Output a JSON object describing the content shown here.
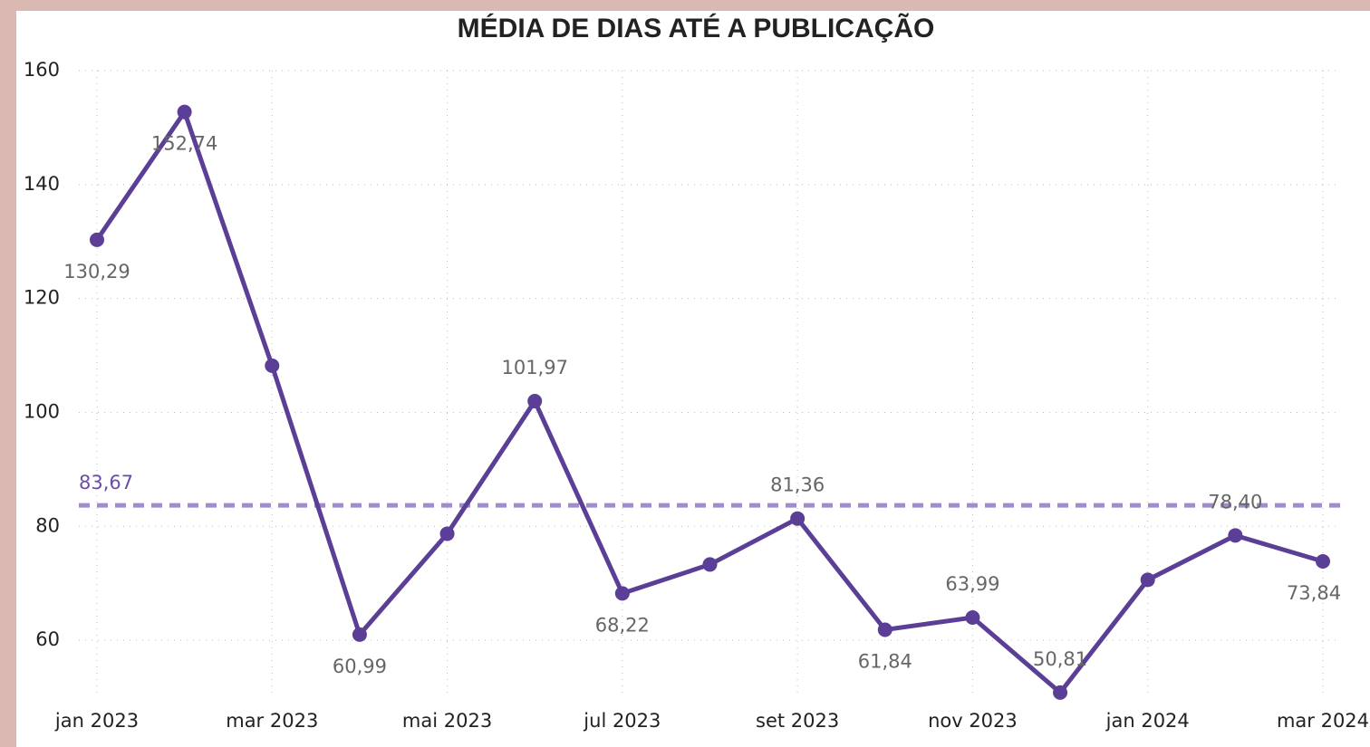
{
  "chart_data": {
    "type": "line",
    "title": "MÉDIA DE DIAS ATÉ A PUBLICAÇÃO",
    "categories": [
      "jan 2023",
      null,
      "mar 2023",
      null,
      "mai 2023",
      null,
      "jul 2023",
      null,
      "set 2023",
      null,
      "nov 2023",
      null,
      "jan 2024",
      null,
      "mar 2024"
    ],
    "series": [
      {
        "name": "Média de dias",
        "color": "#5b3e96",
        "values": [
          130.29,
          152.74,
          108.2,
          60.99,
          78.7,
          101.97,
          68.22,
          73.3,
          81.36,
          61.84,
          63.99,
          50.81,
          70.6,
          78.4,
          73.84
        ],
        "value_labels": [
          "130,29",
          "152,74",
          null,
          "60,99",
          null,
          "101,97",
          "68,22",
          null,
          "81,36",
          "61,84",
          "63,99",
          "50,81",
          null,
          "78,40",
          "73,84"
        ]
      }
    ],
    "average": {
      "value": 83.67,
      "label": "83,67",
      "color": "#a08cc8"
    },
    "ylim": [
      50,
      160
    ],
    "yticks": [
      60,
      80,
      100,
      120,
      140,
      160
    ],
    "grid": true
  }
}
